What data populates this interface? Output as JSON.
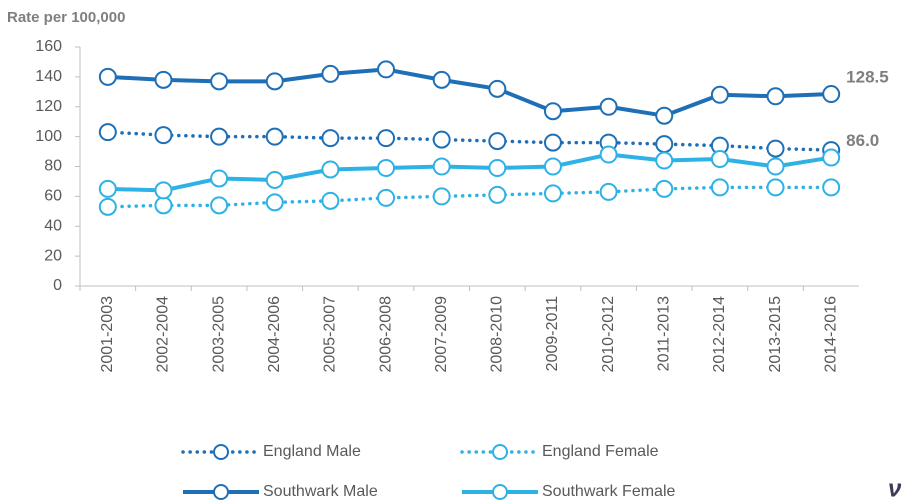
{
  "chart_data": {
    "type": "line",
    "y_axis_label": "Rate per 100,000",
    "categories": [
      "2001-2003",
      "2002-2004",
      "2003-2005",
      "2004-2006",
      "2005-2007",
      "2006-2008",
      "2007-2009",
      "2008-2010",
      "2009-2011",
      "2010-2012",
      "2011-2013",
      "2012-2014",
      "2013-2015",
      "2014-2016"
    ],
    "series": [
      {
        "name": "England Male",
        "color": "#1f6fb6",
        "style": "dotted",
        "values": [
          103,
          101,
          100,
          100,
          99,
          99,
          98,
          97,
          96,
          96,
          95,
          94,
          92,
          91
        ]
      },
      {
        "name": "England Female",
        "color": "#2eb2e6",
        "style": "dotted",
        "values": [
          53,
          54,
          54,
          56,
          57,
          59,
          60,
          61,
          62,
          63,
          65,
          66,
          66,
          66
        ]
      },
      {
        "name": "Southwark Male",
        "color": "#1f6fb6",
        "style": "solid",
        "values": [
          140,
          138,
          137,
          137,
          142,
          145,
          138,
          132,
          117,
          120,
          114,
          128,
          127,
          128.5
        ],
        "value_labels": [
          null,
          null,
          null,
          null,
          null,
          null,
          null,
          null,
          null,
          null,
          null,
          null,
          null,
          "128.5"
        ]
      },
      {
        "name": "Southwark Female",
        "color": "#2eb2e6",
        "style": "solid",
        "values": [
          65,
          64,
          72,
          71,
          78,
          79,
          80,
          79,
          80,
          88,
          84,
          85,
          80,
          86
        ],
        "value_labels": [
          null,
          null,
          null,
          null,
          null,
          null,
          null,
          null,
          null,
          null,
          null,
          null,
          null,
          "86.0"
        ]
      }
    ],
    "ylim": [
      0,
      160
    ],
    "yticks": [
      0,
      20,
      40,
      60,
      80,
      100,
      120,
      140,
      160
    ],
    "grid": false,
    "legend": "bottom",
    "logo_text": "ν"
  }
}
